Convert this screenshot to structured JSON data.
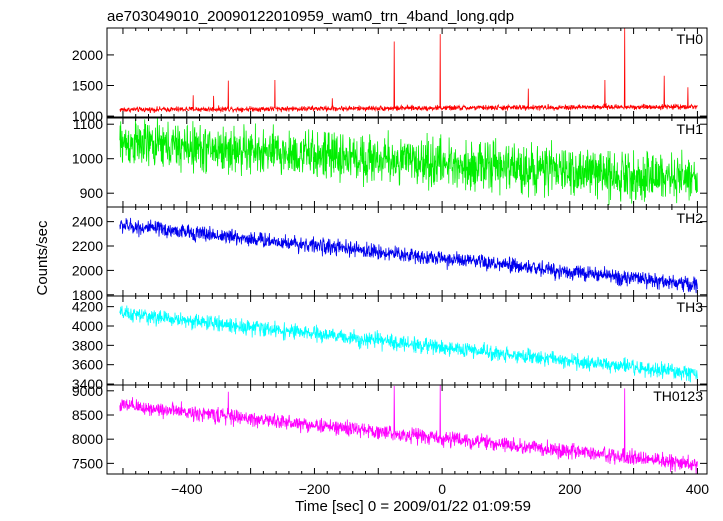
{
  "chart_data": {
    "type": "line",
    "title": "ae703049010_20090122010959_wam0_trn_4band_long.qdp",
    "xlabel": "Time [sec] 0 = 2009/01/22 01:09:59",
    "ylabel": "Counts/sec",
    "xlim": [
      -525,
      415
    ],
    "x_ticks": [
      -400,
      -200,
      0,
      200,
      400
    ],
    "x_tick_labels": [
      "−400",
      "−200",
      "0",
      "200",
      "400"
    ],
    "x_range_data": [
      -505,
      400
    ],
    "grid": false,
    "panels": [
      {
        "name": "TH0",
        "color": "#ff0000",
        "ylim": [
          985,
          2440
        ],
        "y_ticks": [
          1000,
          1500,
          2000
        ],
        "base_start": 1105,
        "base_end": 1155,
        "noise": 30,
        "spikes": [
          {
            "x": -390,
            "y": 1340
          },
          {
            "x": -358,
            "y": 1330
          },
          {
            "x": -335,
            "y": 1580
          },
          {
            "x": -262,
            "y": 1590
          },
          {
            "x": -172,
            "y": 1290
          },
          {
            "x": -75,
            "y": 2220
          },
          {
            "x": -3,
            "y": 2340
          },
          {
            "x": 135,
            "y": 1450
          },
          {
            "x": 255,
            "y": 1590
          },
          {
            "x": 286,
            "y": 2440
          },
          {
            "x": 348,
            "y": 1660
          },
          {
            "x": 385,
            "y": 1470
          }
        ]
      },
      {
        "name": "TH1",
        "color": "#00ee00",
        "ylim": [
          860,
          1118
        ],
        "y_ticks": [
          900,
          1000,
          1100
        ],
        "base_start": 1045,
        "base_end": 940,
        "noise": 48,
        "spikes": []
      },
      {
        "name": "TH2",
        "color": "#0000ee",
        "ylim": [
          1790,
          2520
        ],
        "y_ticks": [
          1800,
          2000,
          2200,
          2400
        ],
        "base_start": 2370,
        "base_end": 1880,
        "noise": 45,
        "spikes": []
      },
      {
        "name": "TH3",
        "color": "#00ffff",
        "ylim": [
          3390,
          4310
        ],
        "y_ticks": [
          3400,
          3600,
          3800,
          4000,
          4200
        ],
        "base_start": 4130,
        "base_end": 3500,
        "noise": 55,
        "spikes": []
      },
      {
        "name": "TH0123",
        "color": "#ff00ff",
        "ylim": [
          7280,
          9120
        ],
        "y_ticks": [
          7500,
          8000,
          8500,
          9000
        ],
        "base_start": 8700,
        "base_end": 7480,
        "noise": 110,
        "spikes": [
          {
            "x": -335,
            "y": 8980
          },
          {
            "x": -75,
            "y": 9100
          },
          {
            "x": -3,
            "y": 9120
          },
          {
            "x": 286,
            "y": 9050
          }
        ]
      }
    ]
  }
}
